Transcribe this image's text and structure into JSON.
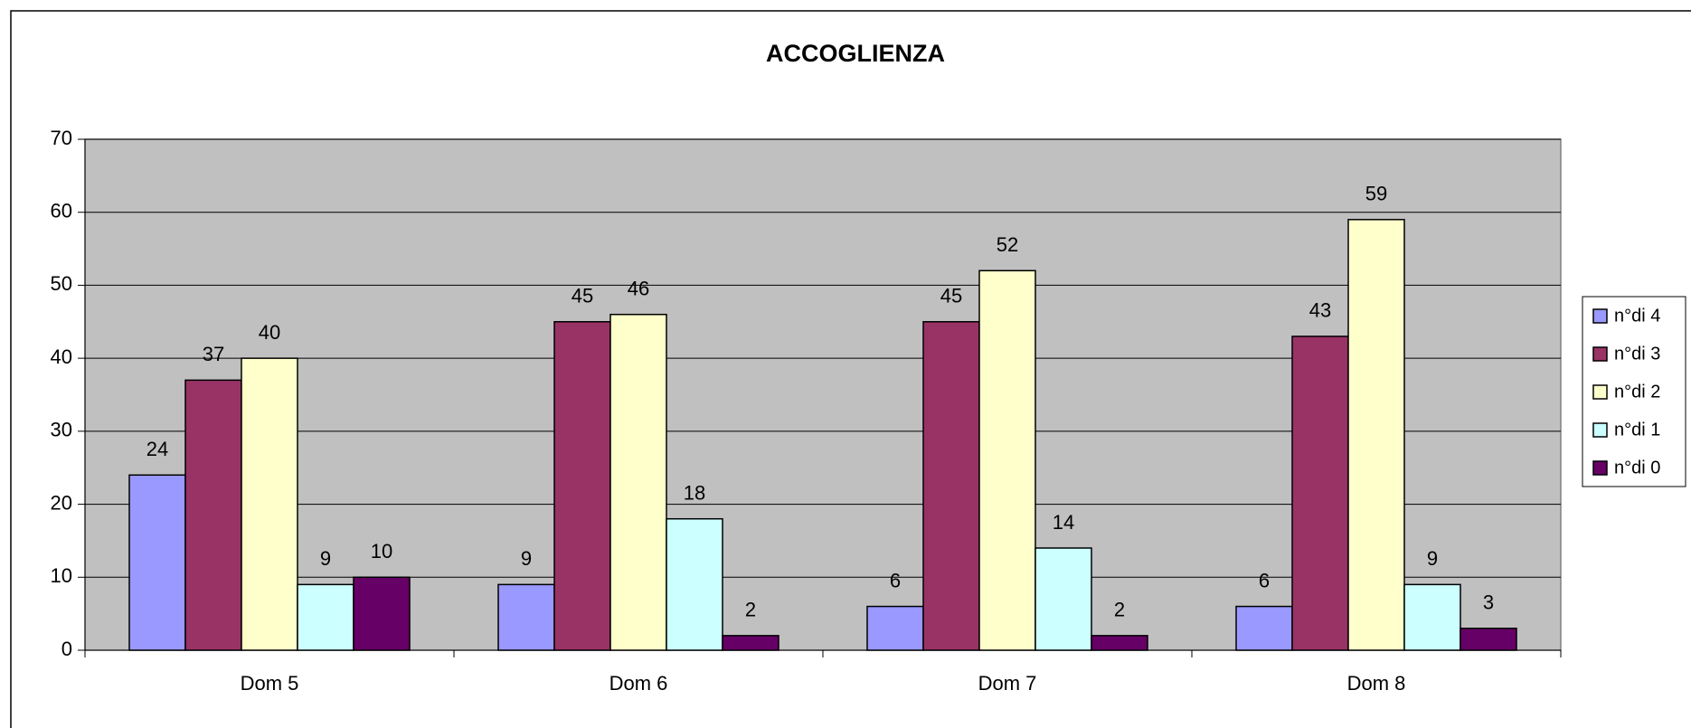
{
  "chart_data": {
    "type": "bar",
    "title": "ACCOGLIENZA",
    "categories": [
      "Dom 5",
      "Dom 6",
      "Dom 7",
      "Dom 8"
    ],
    "series": [
      {
        "name": "n°di 4",
        "color": "#9999ff",
        "values": [
          24,
          9,
          6,
          6
        ]
      },
      {
        "name": "n°di 3",
        "color": "#993366",
        "values": [
          37,
          45,
          45,
          43
        ]
      },
      {
        "name": "n°di 2",
        "color": "#ffffcc",
        "values": [
          40,
          46,
          52,
          59
        ]
      },
      {
        "name": "n°di 1",
        "color": "#ccffff",
        "values": [
          9,
          18,
          14,
          9
        ]
      },
      {
        "name": "n°di 0",
        "color": "#660066",
        "values": [
          10,
          2,
          2,
          3
        ]
      }
    ],
    "ylim": [
      0,
      70
    ],
    "yticks": [
      0,
      10,
      20,
      30,
      40,
      50,
      60,
      70
    ],
    "grid": true,
    "legend": "right"
  }
}
